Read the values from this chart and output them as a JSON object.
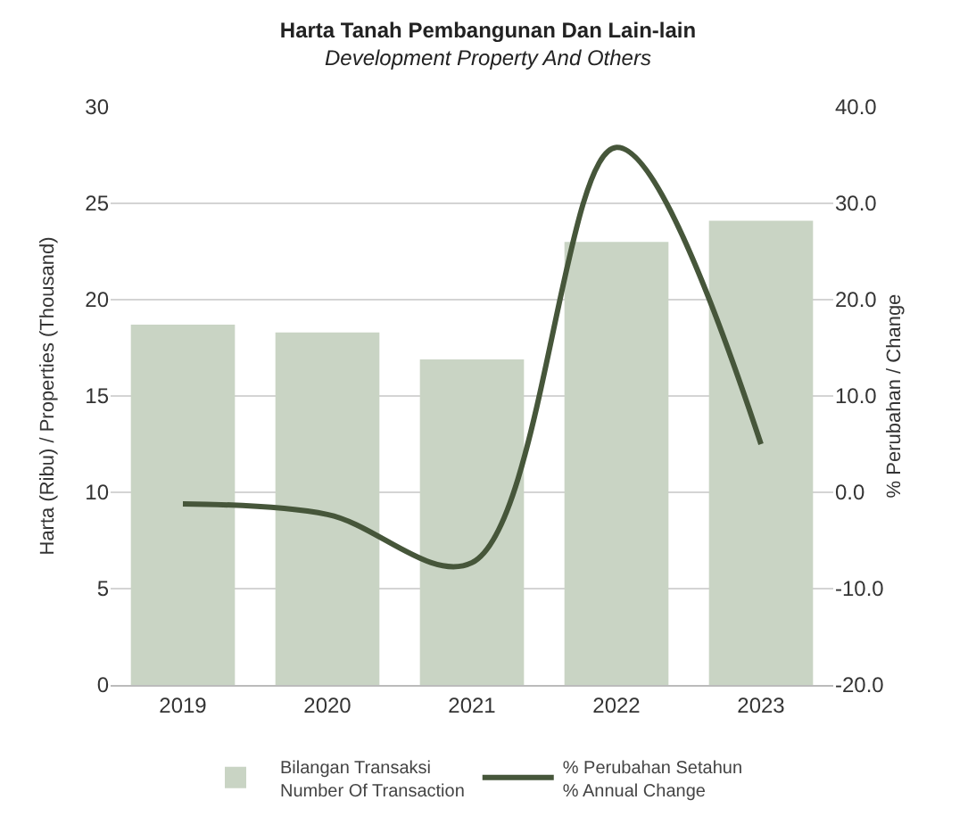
{
  "chart_data": {
    "type": "bar",
    "title": "Harta Tanah Pembangunan Dan Lain-lain",
    "subtitle": "Development Property And Others",
    "categories": [
      "2019",
      "2020",
      "2021",
      "2022",
      "2023"
    ],
    "series": [
      {
        "name": "Bilangan Transaksi\nNumber Of Transaction",
        "color": "#c9d4c4",
        "values": [
          18.7,
          18.3,
          16.9,
          23.0,
          24.1
        ]
      },
      {
        "name": "% Perubahan Setahun\n% Annual Change",
        "type": "line",
        "axis": "y2",
        "color": "#46563a",
        "values": [
          -1.2,
          -2.3,
          -7.3,
          35.8,
          5.0
        ]
      }
    ],
    "ylabel": "Harta (Ribu) / Properties (Thousand)",
    "y2label": "% Perubahan / Change",
    "ylim": [
      0,
      30
    ],
    "yticks": [
      0,
      5,
      10,
      15,
      20,
      25,
      30
    ],
    "y2lim": [
      -20,
      40
    ],
    "y2ticks": [
      {
        "value": -20,
        "label": "-20.0"
      },
      {
        "value": -10,
        "label": "-10.0"
      },
      {
        "value": 0,
        "label": "0.0"
      },
      {
        "value": 10,
        "label": "10.0"
      },
      {
        "value": 20,
        "label": "20.0"
      },
      {
        "value": 30,
        "label": "30.0"
      },
      {
        "value": 40,
        "label": "40.0"
      }
    ],
    "grid": "y",
    "legend": "bottom",
    "marker": "none",
    "line_style": "solid"
  }
}
